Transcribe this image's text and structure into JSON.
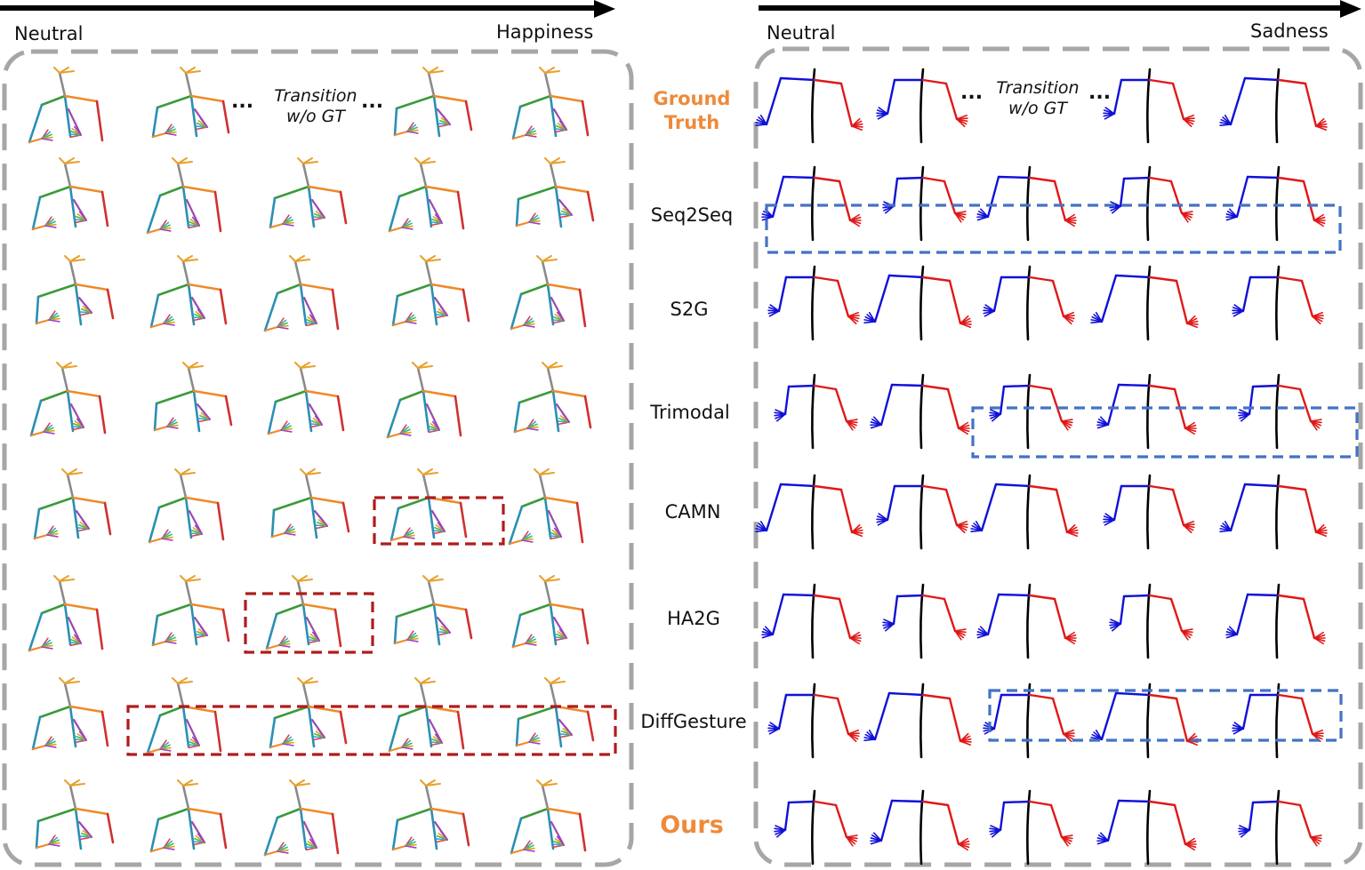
{
  "left_panel": {
    "start_label": "Neutral",
    "end_label": "Happiness",
    "transition_note": [
      "Transition",
      "w/o GT"
    ]
  },
  "right_panel": {
    "start_label": "Neutral",
    "end_label": "Sadness",
    "transition_note": [
      "Transition",
      "w/o GT"
    ]
  },
  "ellipsis": "...",
  "rows": [
    {
      "label": [
        "Ground",
        "Truth"
      ],
      "highlight": true
    },
    {
      "label": [
        "Seq2Seq"
      ],
      "highlight": false
    },
    {
      "label": [
        "S2G"
      ],
      "highlight": false
    },
    {
      "label": [
        "Trimodal"
      ],
      "highlight": false
    },
    {
      "label": [
        "CAMN"
      ],
      "highlight": false
    },
    {
      "label": [
        "HA2G"
      ],
      "highlight": false
    },
    {
      "label": [
        "DiffGesture"
      ],
      "highlight": false
    },
    {
      "label": [
        "Ours"
      ],
      "highlight": true
    }
  ],
  "colors": {
    "arrow": "#000000",
    "panel_border": "#a6a6a6",
    "left_failure_box": "#b01c1c",
    "right_failure_box": "#4472c4",
    "highlight_label": "#ee8a3a",
    "left_skeleton": {
      "spine": "#8a8a8a",
      "left_arm": "#2a8fb5",
      "right_arm": "#ee8a2a",
      "shoulder_l": "#3a9a3a",
      "head": "#e8a02a",
      "wrist": "#9a4ab0",
      "hand_end": "#d03030"
    },
    "right_skeleton": {
      "spine": "#000000",
      "left_arm": "#1010d8",
      "right_arm": "#e01818"
    }
  }
}
